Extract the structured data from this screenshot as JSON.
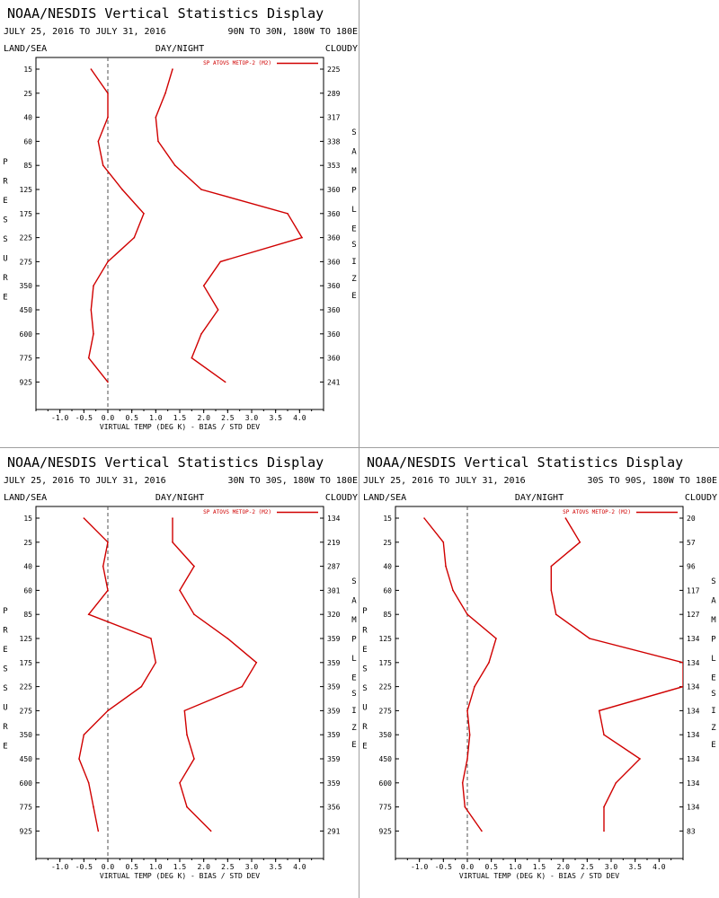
{
  "colors": {
    "series": "#d00000",
    "zero_line": "#505050",
    "axis": "#000000"
  },
  "charts": [
    {
      "title": "NOAA/NESDIS Vertical Statistics Display",
      "date_range": "JULY 25, 2016 TO JULY 31, 2016",
      "region": "90N TO 30N, 180W TO 180E",
      "land_sea_label": "LAND/SEA",
      "day_night_label": "DAY/NIGHT",
      "cloudy_label": "CLOUDY",
      "pressure_label": "PRESSURE",
      "sample_label": "SAMPLE",
      "size_label": "SIZE",
      "legend_label": "SP ATOVS METOP-2 (M2)",
      "xlabel": "VIRTUAL TEMP (DEG K) - BIAS / STD DEV"
    },
    {
      "title": "NOAA/NESDIS Vertical Statistics Display",
      "date_range": "JULY 25, 2016 TO JULY 31, 2016",
      "region": "30N TO 30S, 180W TO 180E",
      "land_sea_label": "LAND/SEA",
      "day_night_label": "DAY/NIGHT",
      "cloudy_label": "CLOUDY",
      "pressure_label": "PRESSURE",
      "sample_label": "SAMPLE",
      "size_label": "SIZE",
      "legend_label": "SP ATOVS METOP-2 (M2)",
      "xlabel": "VIRTUAL TEMP (DEG K) - BIAS / STD DEV"
    },
    {
      "title": "NOAA/NESDIS Vertical Statistics Display",
      "date_range": "JULY 25, 2016 TO JULY 31, 2016",
      "region": "30S TO 90S, 180W TO 180E",
      "land_sea_label": "LAND/SEA",
      "day_night_label": "DAY/NIGHT",
      "cloudy_label": "CLOUDY",
      "pressure_label": "PRESSURE",
      "sample_label": "SAMPLE",
      "size_label": "SIZE",
      "legend_label": "SP ATOVS METOP-2 (M2)",
      "xlabel": "VIRTUAL TEMP (DEG K) - BIAS / STD DEV"
    }
  ],
  "chart_data": [
    {
      "type": "line",
      "title": "NOAA/NESDIS Vertical Statistics Display",
      "xlabel": "VIRTUAL TEMP (DEG K) - BIAS / STD DEV",
      "ylabel": "PRESSURE",
      "xlim": [
        -1.5,
        4.5
      ],
      "x_ticks": [
        "-1.0",
        "-0.5",
        "0.0",
        "0.5",
        "1.0",
        "1.5",
        "2.0",
        "2.5",
        "3.0",
        "3.5",
        "4.0"
      ],
      "pressure_levels": [
        "15",
        "25",
        "40",
        "60",
        "85",
        "125",
        "175",
        "225",
        "275",
        "350",
        "450",
        "600",
        "775",
        "925"
      ],
      "sample_size": [
        "225",
        "289",
        "317",
        "338",
        "353",
        "360",
        "360",
        "360",
        "360",
        "360",
        "360",
        "360",
        "360",
        "241"
      ],
      "series": [
        {
          "name": "SP ATOVS METOP-2 (M2)",
          "values": [
            -0.35,
            0.0,
            0.0,
            -0.2,
            -0.1,
            0.3,
            0.75,
            0.55,
            0.0,
            -0.3,
            -0.35,
            -0.3,
            -0.4,
            0.0
          ]
        },
        {
          "values": [
            1.35,
            1.2,
            1.0,
            1.05,
            1.4,
            1.95,
            3.75,
            4.05,
            2.35,
            2.0,
            2.3,
            1.95,
            1.75,
            2.45
          ]
        }
      ]
    },
    {
      "type": "line",
      "title": "NOAA/NESDIS Vertical Statistics Display",
      "xlabel": "VIRTUAL TEMP (DEG K) - BIAS / STD DEV",
      "ylabel": "PRESSURE",
      "xlim": [
        -1.5,
        4.5
      ],
      "x_ticks": [
        "-1.0",
        "-0.5",
        "0.0",
        "0.5",
        "1.0",
        "1.5",
        "2.0",
        "2.5",
        "3.0",
        "3.5",
        "4.0"
      ],
      "pressure_levels": [
        "15",
        "25",
        "40",
        "60",
        "85",
        "125",
        "175",
        "225",
        "275",
        "350",
        "450",
        "600",
        "775",
        "925"
      ],
      "sample_size": [
        "134",
        "219",
        "287",
        "301",
        "320",
        "359",
        "359",
        "359",
        "359",
        "359",
        "359",
        "359",
        "356",
        "291"
      ],
      "series": [
        {
          "name": "SP ATOVS METOP-2 (M2)",
          "values": [
            -0.5,
            0.0,
            -0.1,
            0.0,
            -0.4,
            0.9,
            1.0,
            0.7,
            0.0,
            -0.5,
            -0.6,
            -0.4,
            -0.3,
            -0.2
          ]
        },
        {
          "values": [
            1.35,
            1.35,
            1.8,
            1.5,
            1.8,
            2.5,
            3.1,
            2.8,
            1.6,
            1.65,
            1.8,
            1.5,
            1.65,
            2.15
          ]
        }
      ]
    },
    {
      "type": "line",
      "title": "NOAA/NESDIS Vertical Statistics Display",
      "xlabel": "VIRTUAL TEMP (DEG K) - BIAS / STD DEV",
      "ylabel": "PRESSURE",
      "xlim": [
        -1.5,
        4.5
      ],
      "x_ticks": [
        "-1.0",
        "-0.5",
        "0.0",
        "0.5",
        "1.0",
        "1.5",
        "2.0",
        "2.5",
        "3.0",
        "3.5",
        "4.0"
      ],
      "pressure_levels": [
        "15",
        "25",
        "40",
        "60",
        "85",
        "125",
        "175",
        "225",
        "275",
        "350",
        "450",
        "600",
        "775",
        "925"
      ],
      "sample_size": [
        "20",
        "57",
        "96",
        "117",
        "127",
        "134",
        "134",
        "134",
        "134",
        "134",
        "134",
        "134",
        "134",
        "83"
      ],
      "series": [
        {
          "name": "SP ATOVS METOP-2 (M2)",
          "values": [
            -0.9,
            -0.5,
            -0.45,
            -0.3,
            0.0,
            0.6,
            0.45,
            0.15,
            0.0,
            0.05,
            0.0,
            -0.1,
            -0.05,
            0.3
          ]
        },
        {
          "values": [
            2.05,
            2.35,
            1.75,
            1.75,
            1.85,
            2.55,
            4.5,
            4.5,
            2.75,
            2.85,
            3.6,
            3.1,
            2.85,
            2.85
          ]
        }
      ]
    }
  ]
}
